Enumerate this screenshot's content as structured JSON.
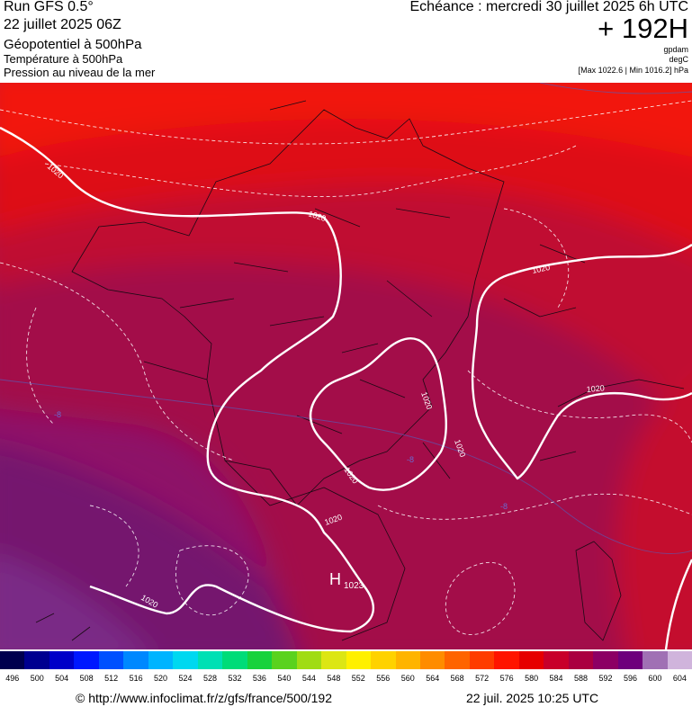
{
  "header": {
    "run_title": "Run GFS 0.5°",
    "run_date": "22 juillet 2025 06Z",
    "field_primary": "Géopotentiel à 500hPa",
    "field_secondary": "Température à 500hPa",
    "field_tertiary": "Pression au niveau de la mer",
    "echeance": "Echéance : mercredi 30 juillet 2025 6h UTC",
    "forecast_hours": "+ 192H",
    "unit_geopotential": "gpdam",
    "unit_temperature": "degC",
    "pressure_range": "[Max 1022.6 | Min 1016.2] hPa"
  },
  "map": {
    "isobar_labels": [
      "1020",
      "1020",
      "1020",
      "1020",
      "1020",
      "1020",
      "1020",
      "1020",
      "1020"
    ],
    "high_marker": "H",
    "high_value": "1023",
    "temperature_labels": [
      "-8",
      "-8",
      "-8"
    ]
  },
  "colorbar": {
    "ticks": [
      "496",
      "500",
      "504",
      "508",
      "512",
      "516",
      "520",
      "524",
      "528",
      "532",
      "536",
      "540",
      "544",
      "548",
      "552",
      "556",
      "560",
      "564",
      "568",
      "572",
      "576",
      "580",
      "584",
      "588",
      "592",
      "596",
      "600",
      "604"
    ],
    "colors": [
      "#00004e",
      "#000090",
      "#0000c8",
      "#0018ff",
      "#0050ff",
      "#0088ff",
      "#00b4ff",
      "#00d8f0",
      "#00e0b4",
      "#00dc78",
      "#18d23c",
      "#5ad21e",
      "#a0dc14",
      "#dce614",
      "#fff000",
      "#ffd200",
      "#ffb400",
      "#ff8c00",
      "#ff6400",
      "#ff3c00",
      "#ff1400",
      "#e60000",
      "#c8002a",
      "#aa0040",
      "#8c0064",
      "#6e007c",
      "#a070b4",
      "#d0b4dc"
    ]
  },
  "footer": {
    "url": "© http://www.infoclimat.fr/z/gfs/france/500/192",
    "timestamp": "22 juil. 2025 10:25 UTC"
  }
}
